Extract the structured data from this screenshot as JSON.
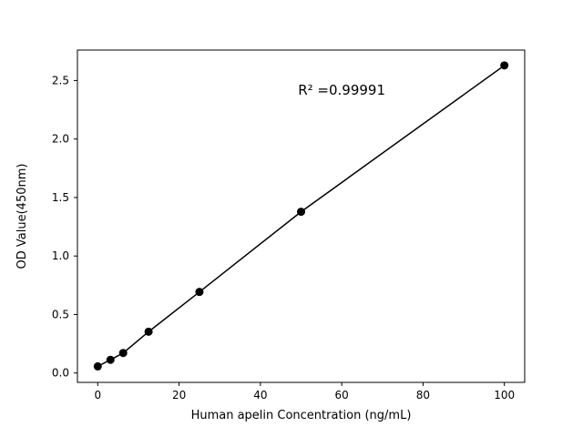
{
  "figure": {
    "background": "#ffffff"
  },
  "chart_data": {
    "type": "scatter",
    "title": "",
    "xlabel": "Human apelin Concentration (ng/mL)",
    "ylabel": "OD Value(450nm)",
    "x": [
      0,
      3.125,
      6.25,
      12.5,
      25,
      50,
      100
    ],
    "y": [
      0.057,
      0.113,
      0.171,
      0.353,
      0.693,
      1.378,
      2.629
    ],
    "line": true,
    "line_color": "#000000",
    "marker_color": "#000000",
    "xlim": [
      -5,
      105
    ],
    "ylim": [
      -0.08,
      2.76
    ],
    "xticks": [
      0,
      20,
      40,
      60,
      80,
      100
    ],
    "xtick_labels": [
      "0",
      "20",
      "40",
      "60",
      "80",
      "100"
    ],
    "yticks": [
      0.0,
      0.5,
      1.0,
      1.5,
      2.0,
      2.5
    ],
    "ytick_labels": [
      "0.0",
      "0.5",
      "1.0",
      "1.5",
      "2.0",
      "2.5"
    ],
    "grid": false,
    "legend": null,
    "annotation": {
      "text": "R² =0.99991",
      "x": 60,
      "y": 2.38
    }
  }
}
